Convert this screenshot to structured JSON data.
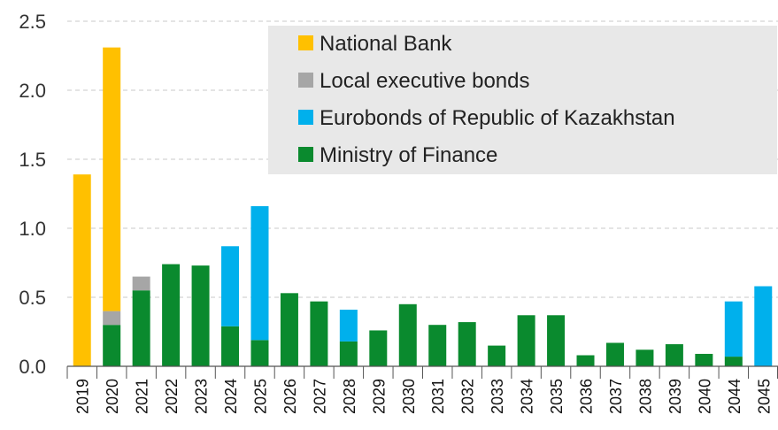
{
  "chart_data": {
    "type": "bar",
    "stacked": true,
    "title": "",
    "xlabel": "",
    "ylabel": "",
    "ylim": [
      0,
      2.5
    ],
    "yticks": [
      "0.0",
      "0.5",
      "1.0",
      "1.5",
      "2.0",
      "2.5"
    ],
    "grid": true,
    "legend_position": "top-right",
    "categories": [
      "2019",
      "2020",
      "2021",
      "2022",
      "2023",
      "2024",
      "2025",
      "2026",
      "2027",
      "2028",
      "2029",
      "2030",
      "2031",
      "2032",
      "2033",
      "2034",
      "2035",
      "2036",
      "2037",
      "2038",
      "2039",
      "2040",
      "2044",
      "2045"
    ],
    "series": [
      {
        "name": "Ministry of Finance",
        "color": "#0a8a2e",
        "values": [
          0,
          0.3,
          0.55,
          0.74,
          0.73,
          0.29,
          0.19,
          0.53,
          0.47,
          0.18,
          0.26,
          0.45,
          0.3,
          0.32,
          0.15,
          0.37,
          0.37,
          0.08,
          0.17,
          0.12,
          0.16,
          0.09,
          0.07,
          0
        ]
      },
      {
        "name": "Eurobonds of Republic of Kazakhstan",
        "color": "#00b0ec",
        "values": [
          0,
          0,
          0,
          0,
          0,
          0.58,
          0.97,
          0,
          0,
          0.23,
          0,
          0,
          0,
          0,
          0,
          0,
          0,
          0,
          0,
          0,
          0,
          0,
          0.4,
          0.58
        ]
      },
      {
        "name": "Local executive bonds",
        "color": "#a6a6a6",
        "values": [
          0,
          0.1,
          0.1,
          0,
          0,
          0,
          0,
          0,
          0,
          0,
          0,
          0,
          0,
          0,
          0,
          0,
          0,
          0,
          0,
          0,
          0,
          0,
          0,
          0
        ]
      },
      {
        "name": "National Bank",
        "color": "#ffc000",
        "values": [
          1.39,
          1.91,
          0,
          0,
          0,
          0,
          0,
          0,
          0,
          0,
          0,
          0,
          0,
          0,
          0,
          0,
          0,
          0,
          0,
          0,
          0,
          0,
          0,
          0
        ]
      }
    ],
    "legend_order": [
      "National Bank",
      "Local executive bonds",
      "Eurobonds of Republic of Kazakhstan",
      "Ministry of Finance"
    ],
    "legend_background": "#e8e8e8"
  }
}
